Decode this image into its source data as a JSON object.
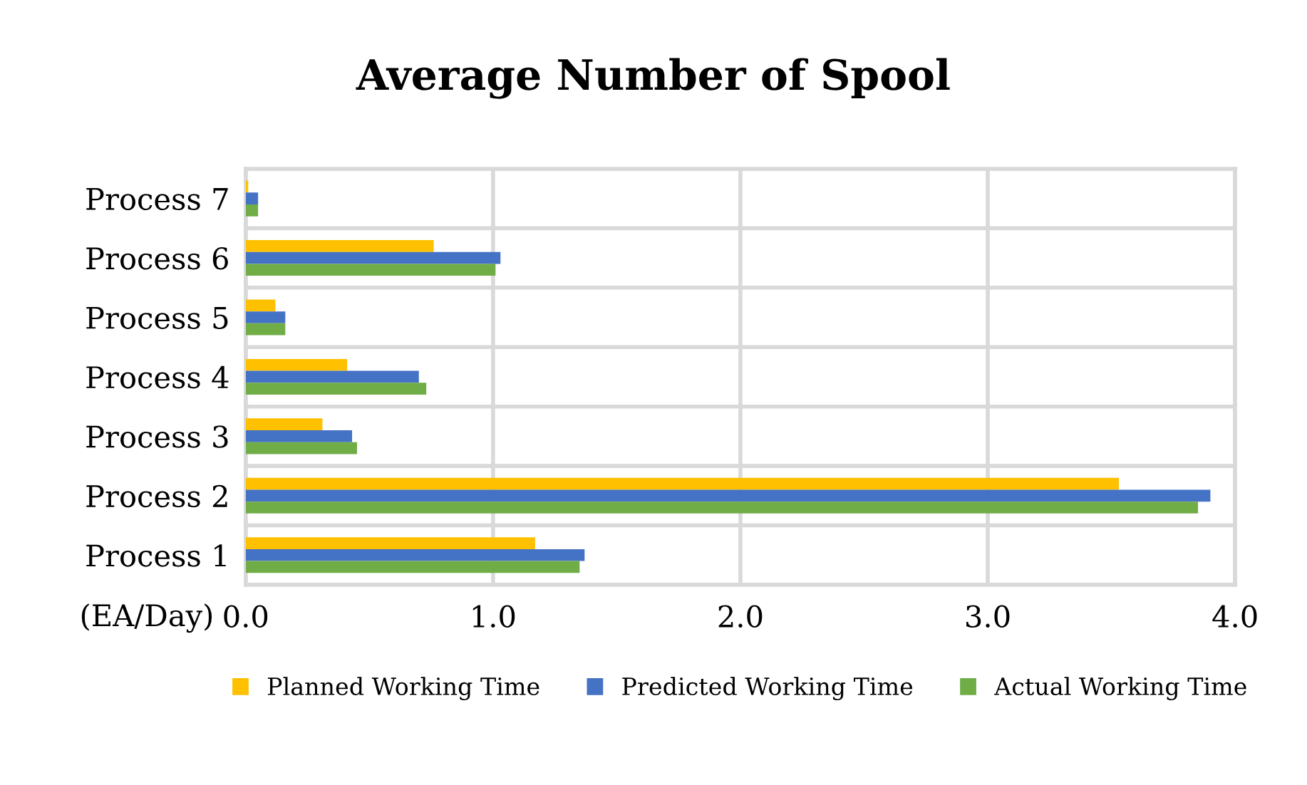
{
  "chart_data": {
    "type": "bar",
    "orientation": "horizontal",
    "title": "Average Number of Spool",
    "xlabel": "(EA/Day)",
    "categories": [
      "Process 7",
      "Process 6",
      "Process 5",
      "Process 4",
      "Process 3",
      "Process 2",
      "Process 1"
    ],
    "series": [
      {
        "name": "Planned Working Time",
        "color": "#ffc000",
        "values": [
          0.01,
          0.76,
          0.12,
          0.41,
          0.31,
          3.53,
          1.17
        ]
      },
      {
        "name": "Predicted Working Time",
        "color": "#4472c4",
        "values": [
          0.05,
          1.03,
          0.16,
          0.7,
          0.43,
          3.9,
          1.37
        ]
      },
      {
        "name": "Actual Working Time",
        "color": "#70ad47",
        "values": [
          0.05,
          1.01,
          0.16,
          0.73,
          0.45,
          3.85,
          1.35
        ]
      }
    ],
    "xlim": [
      0,
      4
    ],
    "xticks": [
      {
        "value": 0,
        "label": "0.0"
      },
      {
        "value": 1,
        "label": "1.0"
      },
      {
        "value": 2,
        "label": "2.0"
      },
      {
        "value": 3,
        "label": "3.0"
      },
      {
        "value": 4,
        "label": "4.0"
      }
    ],
    "grid": true,
    "legend": "bottom"
  }
}
